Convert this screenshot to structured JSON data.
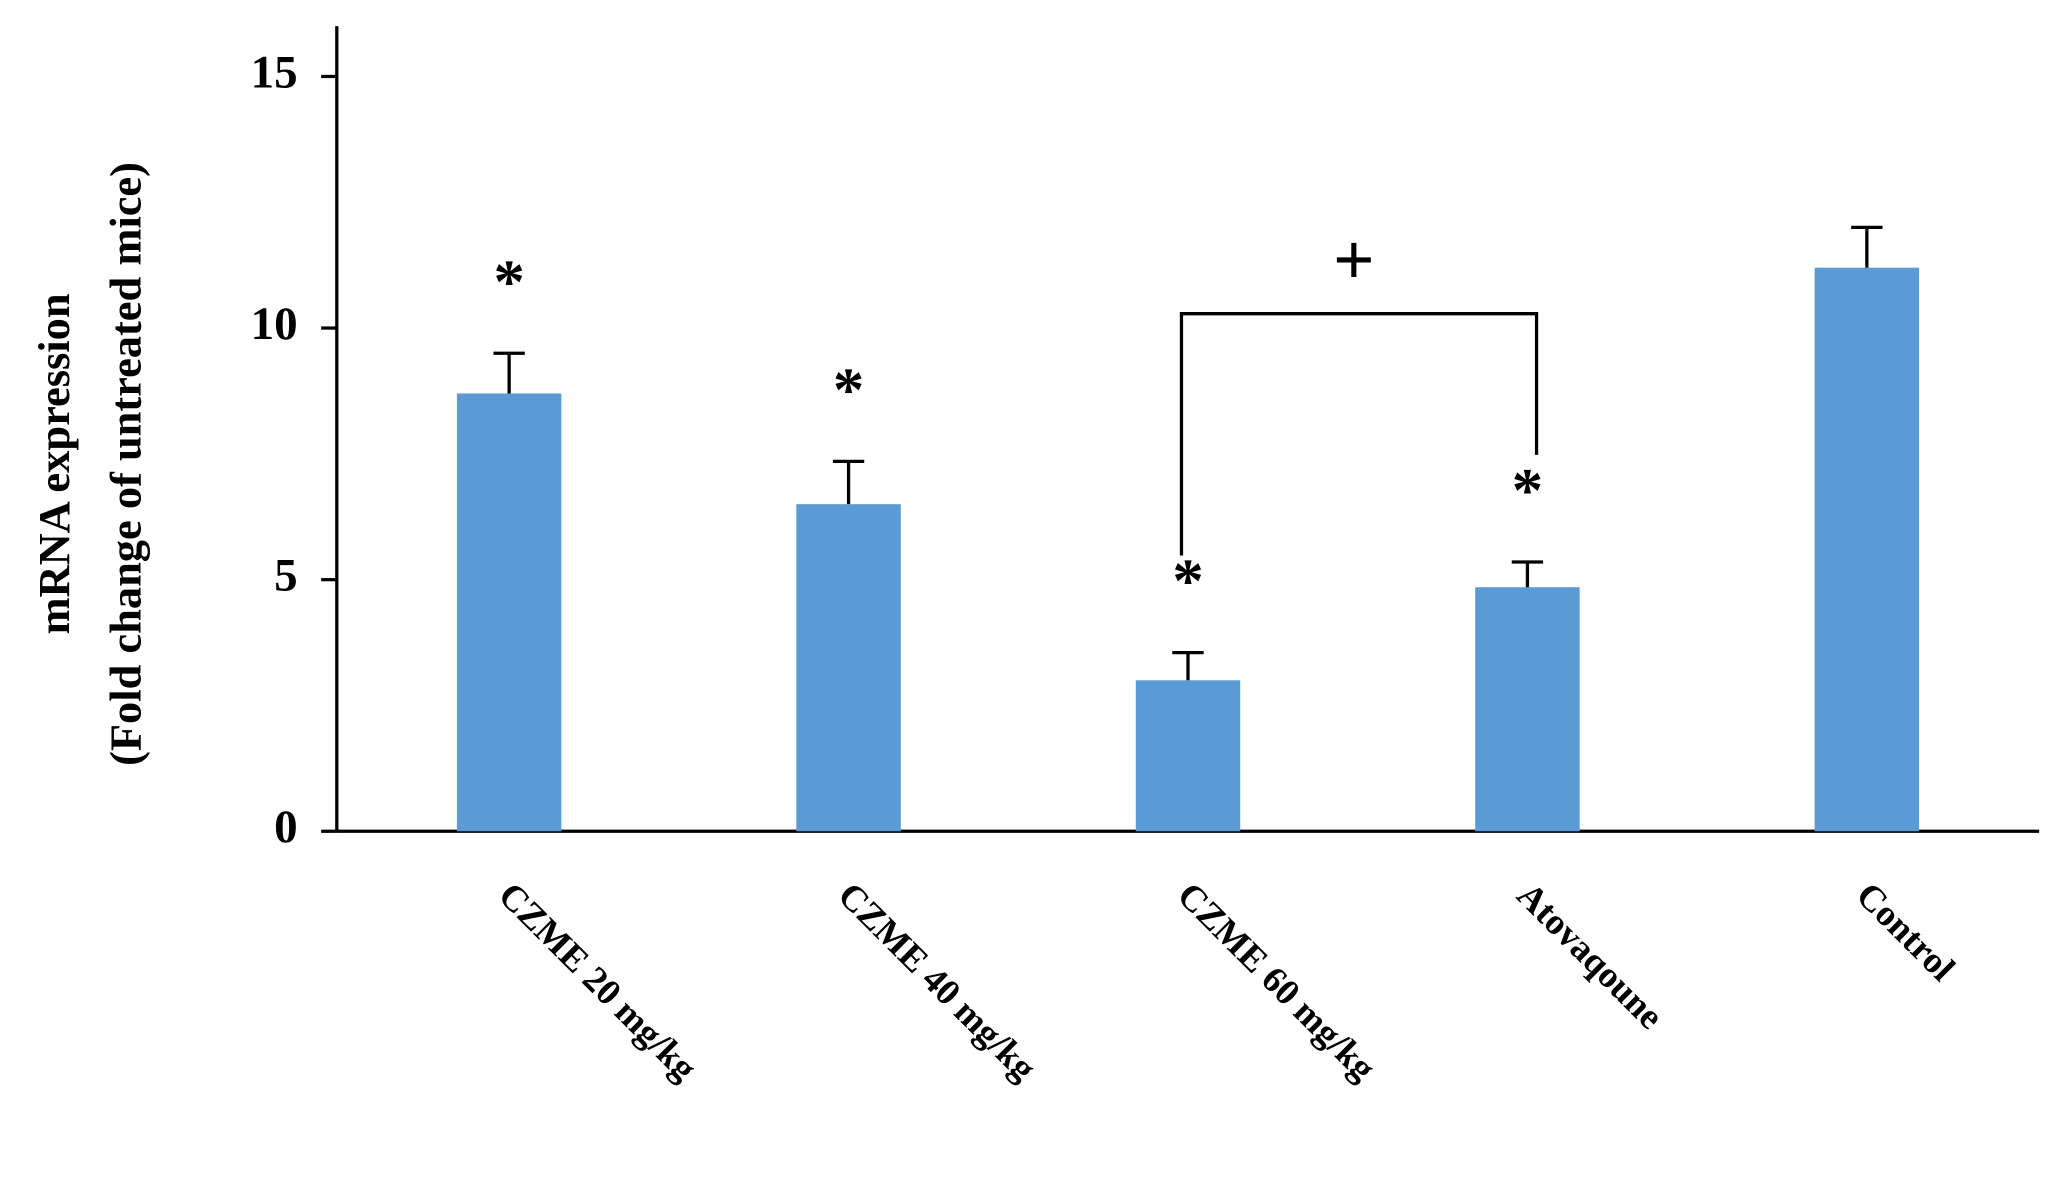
{
  "chart_data": {
    "type": "bar",
    "y_label": [
      "mRNA expression",
      "(Fold change of untreated mice)"
    ],
    "categories": [
      "CZME 20 mg/kg",
      "CZME 40 mg/kg",
      "CZME 60 mg/kg",
      "Atovaqoune",
      "Control"
    ],
    "values": [
      8.7,
      6.5,
      3.0,
      4.85,
      11.2
    ],
    "errors": [
      0.8,
      0.85,
      0.55,
      0.5,
      0.8
    ],
    "annotations": [
      "*",
      "*",
      "*",
      "*",
      null
    ],
    "bracket_label": "+",
    "color": "#5b9bd5",
    "ylim": [
      0,
      16
    ],
    "yticks": [
      0,
      5,
      10,
      15
    ],
    "grid": false
  }
}
